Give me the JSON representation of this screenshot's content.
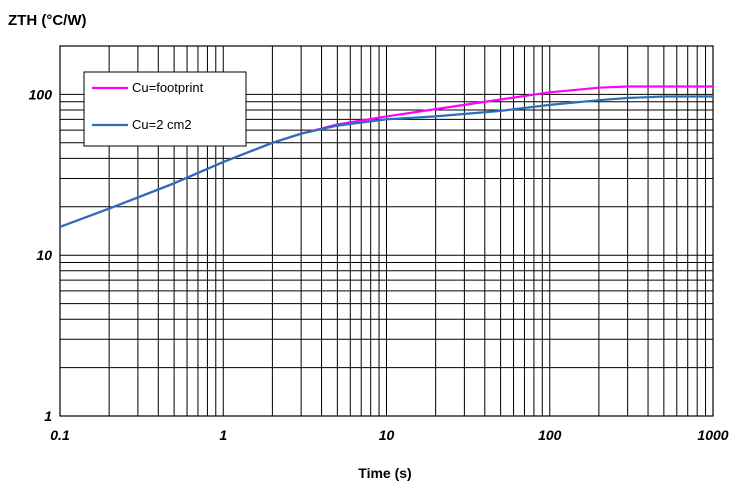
{
  "chart_data": {
    "type": "line",
    "title": "",
    "ylabel": "ZTH (°C/W)",
    "xlabel": "Time (s)",
    "x_scale": "log",
    "y_scale": "log",
    "xlim": [
      0.1,
      1000
    ],
    "ylim": [
      1,
      200
    ],
    "x_ticks": [
      "0.1",
      "1",
      "10",
      "100",
      "1000"
    ],
    "y_ticks": [
      "1",
      "10",
      "100"
    ],
    "grid": true,
    "legend_position": "top-left",
    "series": [
      {
        "name": "Cu=footprint",
        "color": "#ff00ff",
        "x": [
          0.1,
          0.2,
          0.5,
          1,
          2,
          3,
          5,
          10,
          20,
          50,
          100,
          200,
          300,
          500,
          1000
        ],
        "y": [
          15,
          19.5,
          28,
          38,
          50,
          57,
          65,
          73,
          81,
          93,
          103,
          110,
          112,
          112,
          112
        ]
      },
      {
        "name": "Cu=2 cm2",
        "color": "#2970b8",
        "x": [
          0.1,
          0.2,
          0.5,
          1,
          2,
          3,
          5,
          10,
          20,
          50,
          100,
          200,
          300,
          500,
          1000
        ],
        "y": [
          15,
          19.5,
          28,
          38,
          50,
          57,
          64,
          70,
          73,
          79,
          86,
          92,
          95,
          97,
          97
        ]
      }
    ]
  }
}
